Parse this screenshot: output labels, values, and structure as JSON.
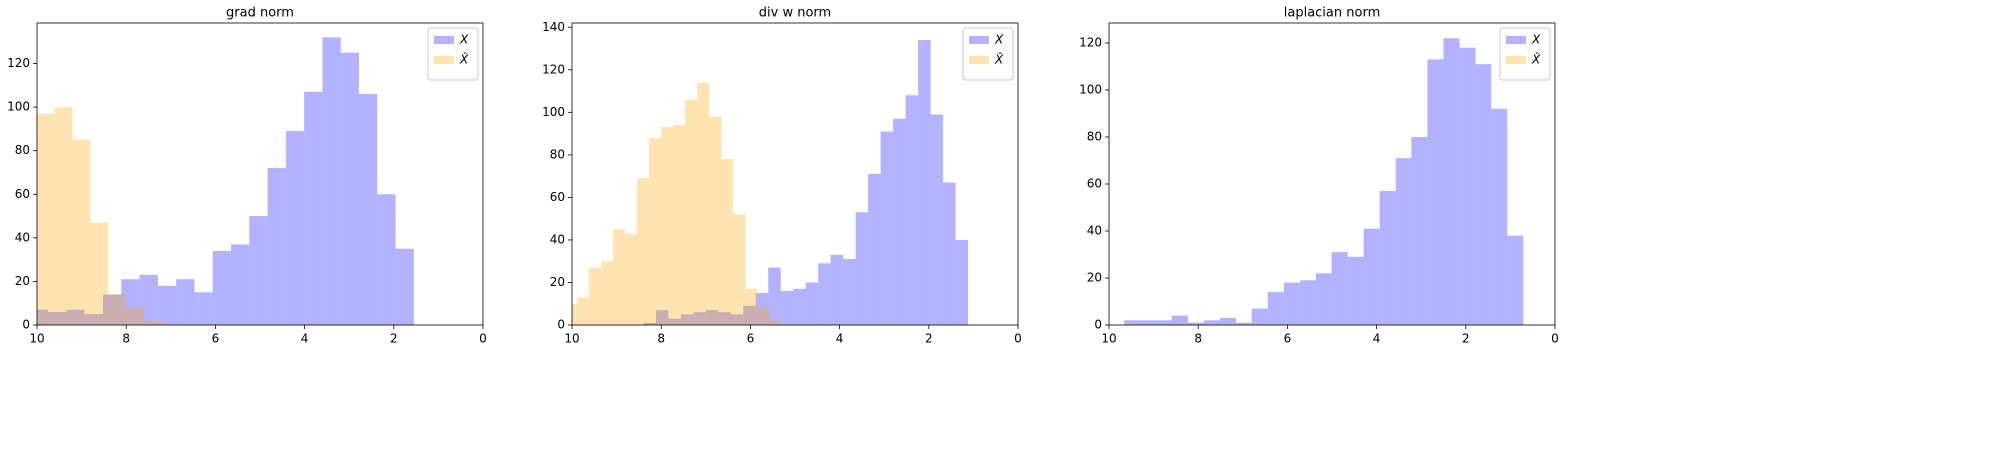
{
  "chart_data": [
    {
      "type": "histogram",
      "title": "grad norm",
      "xlim": [
        10,
        0
      ],
      "xticks": [
        10,
        8,
        6,
        4,
        2,
        0
      ],
      "ylim": [
        0,
        138.6
      ],
      "yticks": [
        0,
        20,
        40,
        60,
        80,
        100,
        120
      ],
      "legend": "upper right",
      "series": [
        {
          "name": "X",
          "color": "#0000ff",
          "alpha": 0.3,
          "bins": [
            1.55,
            1.96,
            2.37,
            2.78,
            3.19,
            3.6,
            4.01,
            4.42,
            4.83,
            5.24,
            5.65,
            6.06,
            6.47,
            6.88,
            7.29,
            7.7,
            8.11,
            8.52,
            8.93,
            9.34,
            9.75,
            10.16
          ],
          "values": [
            35,
            60,
            106,
            125,
            132,
            107,
            89,
            72,
            50,
            37,
            34,
            15,
            21,
            18,
            23,
            21,
            14,
            5,
            7,
            6,
            7
          ]
        },
        {
          "name": "X̂",
          "color": "#ffa500",
          "alpha": 0.3,
          "bins": [
            7.2,
            7.6,
            8.0,
            8.4,
            8.8,
            9.2,
            9.6,
            10.0
          ],
          "values": [
            2,
            8,
            14,
            47,
            85,
            100,
            97
          ]
        }
      ]
    },
    {
      "type": "histogram",
      "title": "div w norm",
      "xlim": [
        10,
        0
      ],
      "xticks": [
        10,
        8,
        6,
        4,
        2,
        0
      ],
      "ylim": [
        0,
        142
      ],
      "yticks": [
        0,
        20,
        40,
        60,
        80,
        100,
        120,
        140
      ],
      "legend": "upper right",
      "series": [
        {
          "name": "X",
          "color": "#0000ff",
          "alpha": 0.3,
          "bins": [
            1.12,
            1.4,
            1.68,
            1.96,
            2.24,
            2.52,
            2.8,
            3.08,
            3.36,
            3.64,
            3.92,
            4.2,
            4.48,
            4.76,
            5.04,
            5.32,
            5.6,
            5.88,
            6.16,
            6.44,
            6.72,
            7.0,
            7.28,
            7.56,
            7.84,
            8.12,
            8.4
          ],
          "values": [
            40,
            67,
            99,
            134,
            108,
            97,
            91,
            71,
            53,
            31,
            33,
            29,
            20,
            17,
            16,
            27,
            15,
            9,
            5,
            6,
            7,
            6,
            5,
            3,
            7,
            1
          ]
        },
        {
          "name": "X̂",
          "color": "#ffa500",
          "alpha": 0.3,
          "bins": [
            5.3,
            5.57,
            5.84,
            6.11,
            6.38,
            6.65,
            6.92,
            7.19,
            7.46,
            7.73,
            8.0,
            8.27,
            8.54,
            8.81,
            9.08,
            9.35,
            9.62,
            9.89,
            10.16,
            10.43
          ],
          "values": [
            2,
            8,
            17,
            52,
            78,
            98,
            114,
            106,
            94,
            93,
            88,
            69,
            43,
            45,
            30,
            27,
            13,
            10,
            6
          ]
        }
      ]
    },
    {
      "type": "histogram",
      "title": "laplacian norm",
      "xlim": [
        10,
        0
      ],
      "xticks": [
        10,
        8,
        6,
        4,
        2,
        0
      ],
      "ylim": [
        0,
        128.5
      ],
      "yticks": [
        0,
        20,
        40,
        60,
        80,
        100,
        120
      ],
      "legend": "upper right",
      "series": [
        {
          "name": "X",
          "color": "#0000ff",
          "alpha": 0.3,
          "bins": [
            0.71,
            1.07,
            1.43,
            1.78,
            2.14,
            2.5,
            2.86,
            3.22,
            3.57,
            3.93,
            4.29,
            4.65,
            5.01,
            5.36,
            5.72,
            6.08,
            6.44,
            6.8,
            7.15,
            7.51,
            7.87,
            8.23,
            8.59,
            8.94,
            9.3,
            9.66
          ],
          "values": [
            38,
            92,
            111,
            118,
            122,
            113,
            80,
            71,
            57,
            41,
            29,
            31,
            22,
            19,
            18,
            14,
            7,
            1,
            3,
            2,
            1,
            4,
            2,
            2,
            2
          ]
        },
        {
          "name": "X̂",
          "color": "#ffa500",
          "alpha": 0.3,
          "bins": [],
          "values": []
        }
      ]
    }
  ]
}
